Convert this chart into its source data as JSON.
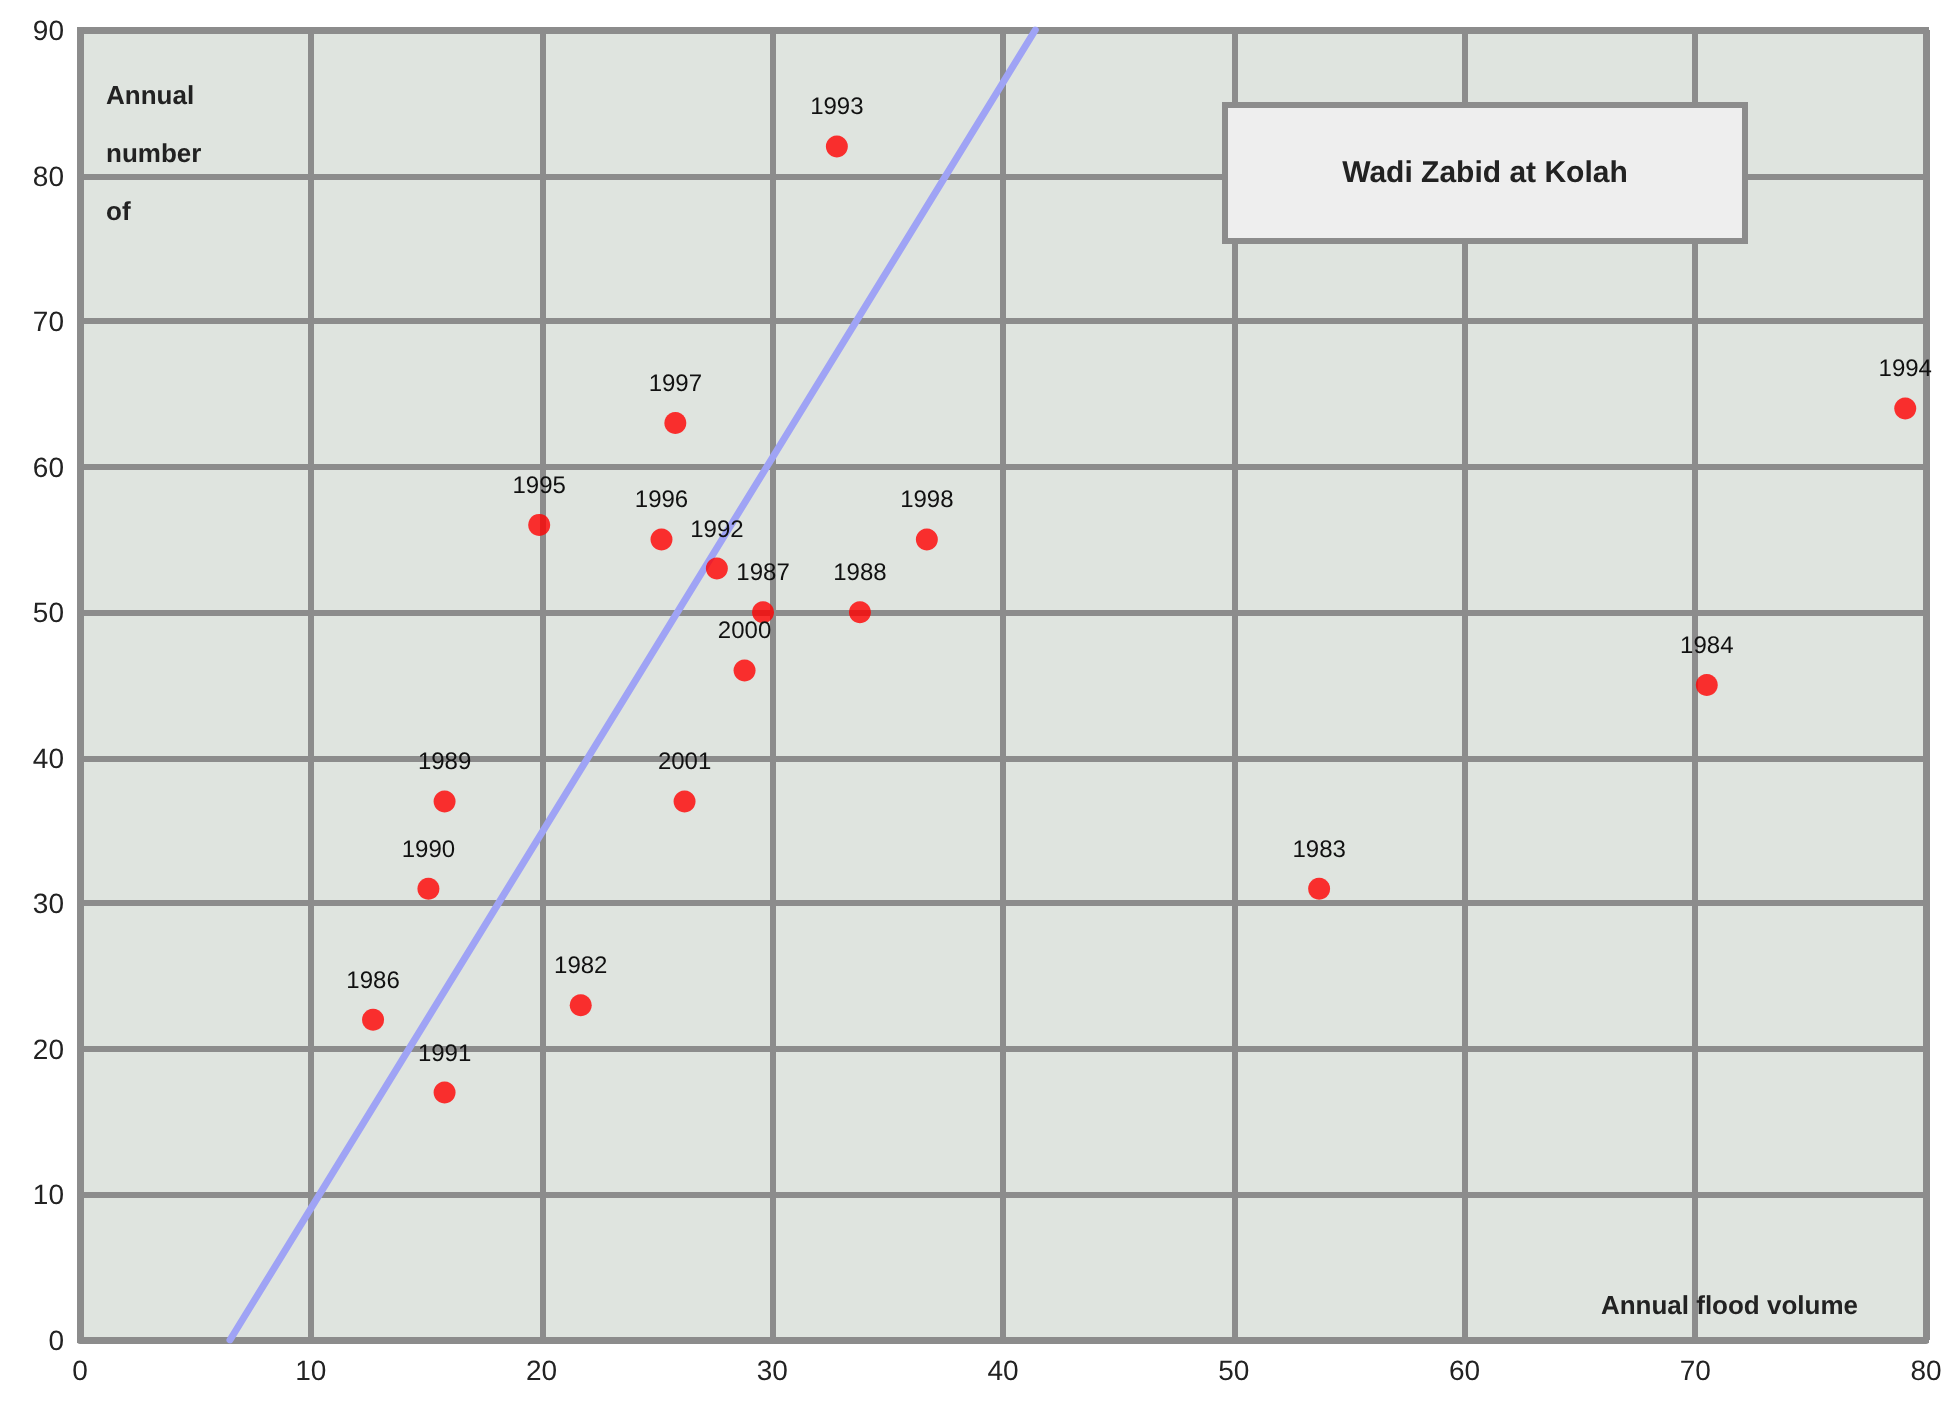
{
  "chart_data": {
    "type": "scatter",
    "title": "Wadi Zabid at Kolah",
    "xlabel": "Annual flood volume",
    "ylabel": "Annual number of",
    "xlim": [
      0,
      80
    ],
    "xticks": [
      0,
      10,
      20,
      30,
      40,
      50,
      60,
      70,
      80
    ],
    "ylim": [
      0,
      90
    ],
    "yticks": [
      0,
      10,
      20,
      30,
      40,
      50,
      60,
      70,
      80,
      90
    ],
    "grid": true,
    "marker": "circle",
    "series": [
      {
        "color": "#ff0000",
        "x": [
          32.8,
          25.8,
          19.9,
          25.2,
          27.6,
          29.6,
          33.8,
          36.7,
          28.8,
          15.8,
          26.2,
          15.1,
          12.7,
          21.7,
          15.8,
          53.7,
          70.5,
          79.1
        ],
        "values": [
          82,
          63,
          56,
          55,
          53,
          50,
          50,
          55,
          46,
          37,
          37,
          31,
          22,
          23,
          17,
          31,
          45,
          64
        ]
      },
      {
        "type": "line",
        "color": "#9fa3f5",
        "x": [
          6.5,
          41.4
        ],
        "values": [
          0,
          90
        ],
        "marker": "none"
      }
    ],
    "annotations": [
      {
        "text": "1993",
        "x": 32.8,
        "y": 82
      },
      {
        "text": "1997",
        "x": 25.8,
        "y": 63
      },
      {
        "text": "1995",
        "x": 19.9,
        "y": 56
      },
      {
        "text": "1996",
        "x": 25.2,
        "y": 55
      },
      {
        "text": "1992",
        "x": 27.6,
        "y": 53
      },
      {
        "text": "1987",
        "x": 29.6,
        "y": 50
      },
      {
        "text": "1988",
        "x": 33.8,
        "y": 50
      },
      {
        "text": "1998",
        "x": 36.7,
        "y": 55
      },
      {
        "text": "2000",
        "x": 28.8,
        "y": 46
      },
      {
        "text": "1989",
        "x": 15.8,
        "y": 37
      },
      {
        "text": "2001",
        "x": 26.2,
        "y": 37
      },
      {
        "text": "1990",
        "x": 15.1,
        "y": 31
      },
      {
        "text": "1986",
        "x": 12.7,
        "y": 22
      },
      {
        "text": "1982",
        "x": 21.7,
        "y": 23
      },
      {
        "text": "1991",
        "x": 15.8,
        "y": 17
      },
      {
        "text": "1983",
        "x": 53.7,
        "y": 31
      },
      {
        "text": "1984",
        "x": 70.5,
        "y": 45
      },
      {
        "text": "1994",
        "x": 79.1,
        "y": 64
      }
    ]
  }
}
